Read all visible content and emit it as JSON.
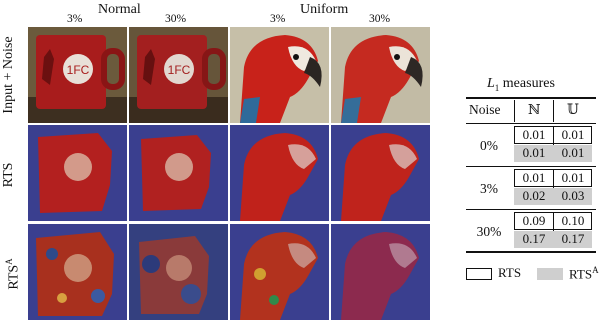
{
  "figure": {
    "group_normal": "Normal",
    "group_uniform": "Uniform",
    "col_pcts": [
      "3%",
      "30%",
      "3%",
      "30%"
    ],
    "row_labels": [
      "Input + Noise",
      "RTS",
      "RTS"
    ],
    "row3_sup": "A"
  },
  "table": {
    "title_script": "L",
    "title_sub": "1",
    "title_text": " measures",
    "noise_header": "Noise",
    "col_n": "ℕ",
    "col_u": "𝕌",
    "rows": [
      {
        "noise": "0%",
        "rts": [
          "0.01",
          "0.01"
        ],
        "rtsa": [
          "0.01",
          "0.01"
        ]
      },
      {
        "noise": "3%",
        "rts": [
          "0.01",
          "0.01"
        ],
        "rtsa": [
          "0.02",
          "0.03"
        ]
      },
      {
        "noise": "30%",
        "rts": [
          "0.09",
          "0.10"
        ],
        "rtsa": [
          "0.17",
          "0.17"
        ]
      }
    ],
    "legend_rts": "RTS",
    "legend_rtsa": "RTS",
    "legend_rtsa_sup": "A"
  },
  "colors": {
    "mug_red": "#b3201f",
    "parrot_red": "#c8221a",
    "overlay_blue": "#3a3f8f",
    "table_shade": "#cfcfcf"
  }
}
